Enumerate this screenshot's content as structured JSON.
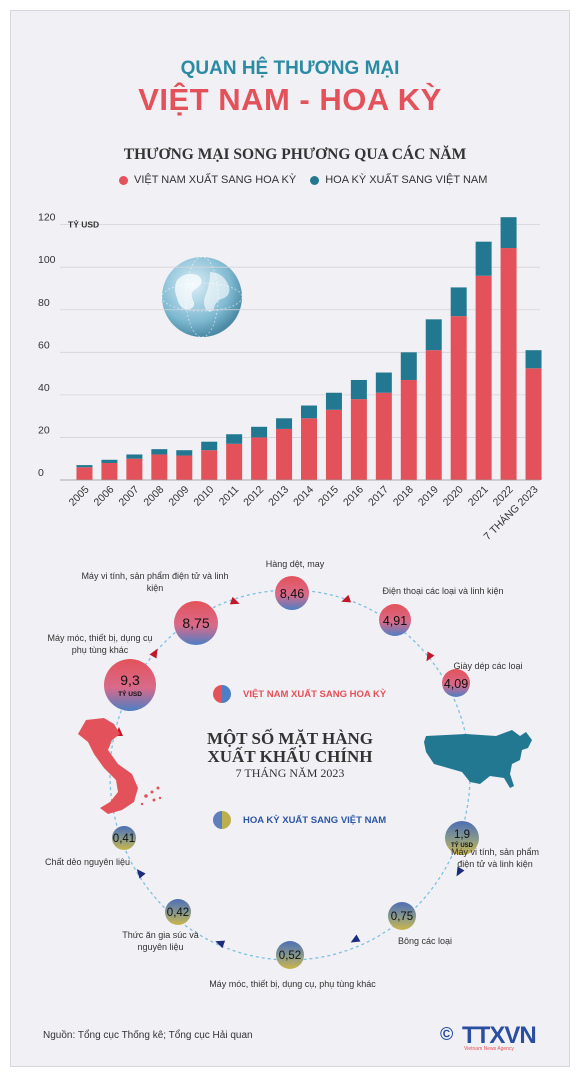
{
  "header": {
    "title_line1": "QUAN HỆ THƯƠNG MẠI",
    "title_line2": "VIỆT NAM - HOA KỲ",
    "subtitle": "THƯƠNG MẠI SONG PHƯƠNG QUA CÁC NĂM"
  },
  "legend": {
    "vn_to_us": "VIỆT NAM XUẤT SANG HOA KỲ",
    "us_to_vn": "HOA KỲ XUẤT SANG VIỆT NAM"
  },
  "colors": {
    "vn": "#e3525a",
    "us": "#237891",
    "teal_title": "#2a8ba3"
  },
  "chart_data": {
    "type": "bar",
    "stacked": true,
    "unit_label": "TỶ USD",
    "categories": [
      "2005",
      "2006",
      "2007",
      "2008",
      "2009",
      "2010",
      "2011",
      "2012",
      "2013",
      "2014",
      "2015",
      "2016",
      "2017",
      "2018",
      "2019",
      "2020",
      "2021",
      "2022",
      "7 THÁNG 2023"
    ],
    "series": [
      {
        "name": "VIỆT NAM XUẤT SANG HOA KỲ",
        "values": [
          6,
          8,
          10,
          12,
          11.5,
          14,
          17,
          20,
          24,
          29,
          33,
          38,
          41,
          47,
          61,
          77,
          96,
          109,
          52.5
        ]
      },
      {
        "name": "HOA KỲ XUẤT SANG VIỆT NAM",
        "values": [
          1,
          1.5,
          2,
          2.5,
          2.5,
          4,
          4.5,
          5,
          5,
          6,
          8,
          9,
          9.5,
          13,
          14.5,
          13.5,
          16,
          14.5,
          8.5
        ]
      }
    ],
    "ylim": [
      0,
      125
    ],
    "yticks": [
      "0",
      "20",
      "40",
      "60",
      "80",
      "100",
      "120"
    ],
    "grid": true
  },
  "items": {
    "title_line1": "MỘT SỐ MẶT HÀNG",
    "title_line2": "XUẤT KHẨU CHÍNH",
    "period": "7 THÁNG NĂM 2023",
    "legend_vn": "VIỆT NAM XUẤT SANG HOA KỲ",
    "legend_us": "HOA KỲ XUẤT SANG VIỆT NAM",
    "vn_exports": [
      {
        "value": "9,3",
        "unit": "TỶ USD",
        "label": "Máy móc, thiết bị, dụng cụ phụ tùng khác"
      },
      {
        "value": "8,75",
        "label": "Máy vi tính, sản phẩm điện tử và linh kiện"
      },
      {
        "value": "8,46",
        "label": "Hàng dệt, may"
      },
      {
        "value": "4,91",
        "label": "Điện thoại các loại và linh kiện"
      },
      {
        "value": "4,09",
        "label": "Giày dép các loại"
      }
    ],
    "us_exports": [
      {
        "value": "1,9",
        "unit": "TỶ USD",
        "label": "Máy vi tính, sản phẩm điện tử và linh kiện"
      },
      {
        "value": "0,75",
        "label": "Bông các loại"
      },
      {
        "value": "0,52",
        "label": "Máy móc, thiết bị, dụng cụ, phụ tùng khác"
      },
      {
        "value": "0,42",
        "label": "Thức ăn gia súc và nguyên liệu"
      },
      {
        "value": "0,41",
        "label": "Chất dẻo nguyên liệu"
      }
    ]
  },
  "footer": {
    "source": "Nguồn: Tổng cục Thống kê; Tổng cục Hải quan",
    "logo_text": "TTXVN",
    "logo_sub": "Vietnam News Agency",
    "copyright": "©"
  }
}
